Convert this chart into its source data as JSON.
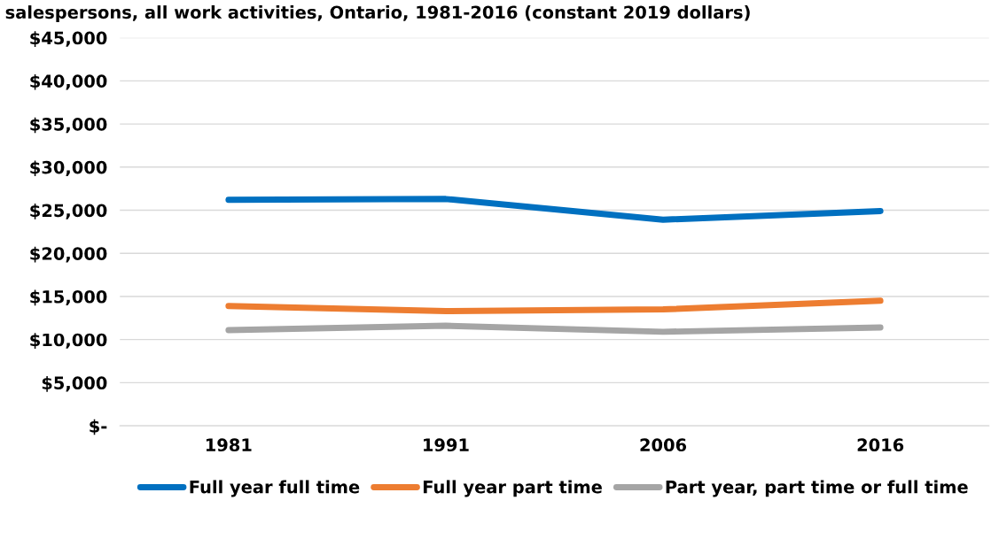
{
  "chart_data": {
    "type": "line",
    "title": "salespersons, all work activities, Ontario, 1981-2016 (constant 2019 dollars)",
    "categories": [
      "1981",
      "1991",
      "2006",
      "2016"
    ],
    "series": [
      {
        "name": "Full year full time",
        "color": "#0070c0",
        "values": [
          26200,
          26300,
          23900,
          24900
        ]
      },
      {
        "name": "Full year part time",
        "color": "#ed7d31",
        "values": [
          13900,
          13300,
          13500,
          14500
        ]
      },
      {
        "name": "Part year, part time or full time",
        "color": "#a5a5a5",
        "values": [
          11100,
          11600,
          10900,
          11400
        ]
      }
    ],
    "ylim": [
      0,
      45000
    ],
    "yticks": [
      {
        "value": 0,
        "label": "$-"
      },
      {
        "value": 5000,
        "label": "$5,000"
      },
      {
        "value": 10000,
        "label": "$10,000"
      },
      {
        "value": 15000,
        "label": "$15,000"
      },
      {
        "value": 20000,
        "label": "$20,000"
      },
      {
        "value": 25000,
        "label": "$25,000"
      },
      {
        "value": 30000,
        "label": "$30,000"
      },
      {
        "value": 35000,
        "label": "$35,000"
      },
      {
        "value": 40000,
        "label": "$40,000"
      },
      {
        "value": 45000,
        "label": "$45,000"
      }
    ],
    "grid": "y",
    "legend": "bottom",
    "marker": "none",
    "line_style": "solid"
  }
}
